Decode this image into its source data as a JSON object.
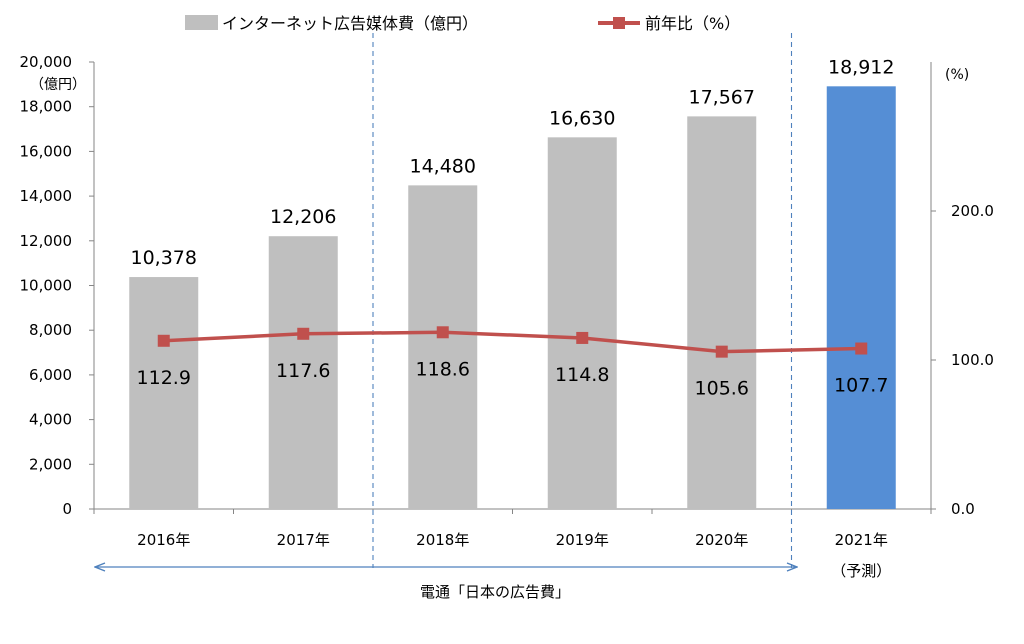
{
  "chart_data": {
    "type": "bar",
    "categories": [
      "2016年",
      "2017年",
      "2018年",
      "2019年",
      "2020年",
      "2021年"
    ],
    "category_note": [
      "",
      "",
      "",
      "",
      "",
      "（予測）"
    ],
    "series": [
      {
        "name": "インターネット広告媒体費（億円）",
        "type": "bar",
        "axis": "left",
        "values": [
          10378,
          12206,
          14480,
          16630,
          17567,
          18912
        ],
        "labels": [
          "10,378",
          "12,206",
          "14,480",
          "16,630",
          "17,567",
          "18,912"
        ],
        "color": "#bfbfbf",
        "highlight_color": "#558ed5",
        "highlight_index": 5
      },
      {
        "name": "前年比（%）",
        "type": "line",
        "axis": "right",
        "values": [
          112.9,
          117.6,
          118.6,
          114.8,
          105.6,
          107.7
        ],
        "labels": [
          "112.9",
          "117.6",
          "118.6",
          "114.8",
          "105.6",
          "107.7"
        ],
        "color": "#c0504d"
      }
    ],
    "y_left": {
      "unit": "（億円）",
      "ylim": [
        0,
        20000
      ],
      "ticks": [
        0,
        2000,
        4000,
        6000,
        8000,
        10000,
        12000,
        14000,
        16000,
        18000,
        20000
      ],
      "tick_labels": [
        "0",
        "2,000",
        "4,000",
        "6,000",
        "8,000",
        "10,000",
        "12,000",
        "14,000",
        "16,000",
        "18,000",
        "20,000"
      ]
    },
    "y_right": {
      "unit": "(%)",
      "ylim": [
        0,
        300
      ],
      "ticks": [
        0,
        100,
        200
      ],
      "tick_labels": [
        "0.0",
        "100.0",
        "200.0"
      ]
    },
    "source": "電通「日本の広告費」",
    "legend_position": "top",
    "grid": false
  }
}
